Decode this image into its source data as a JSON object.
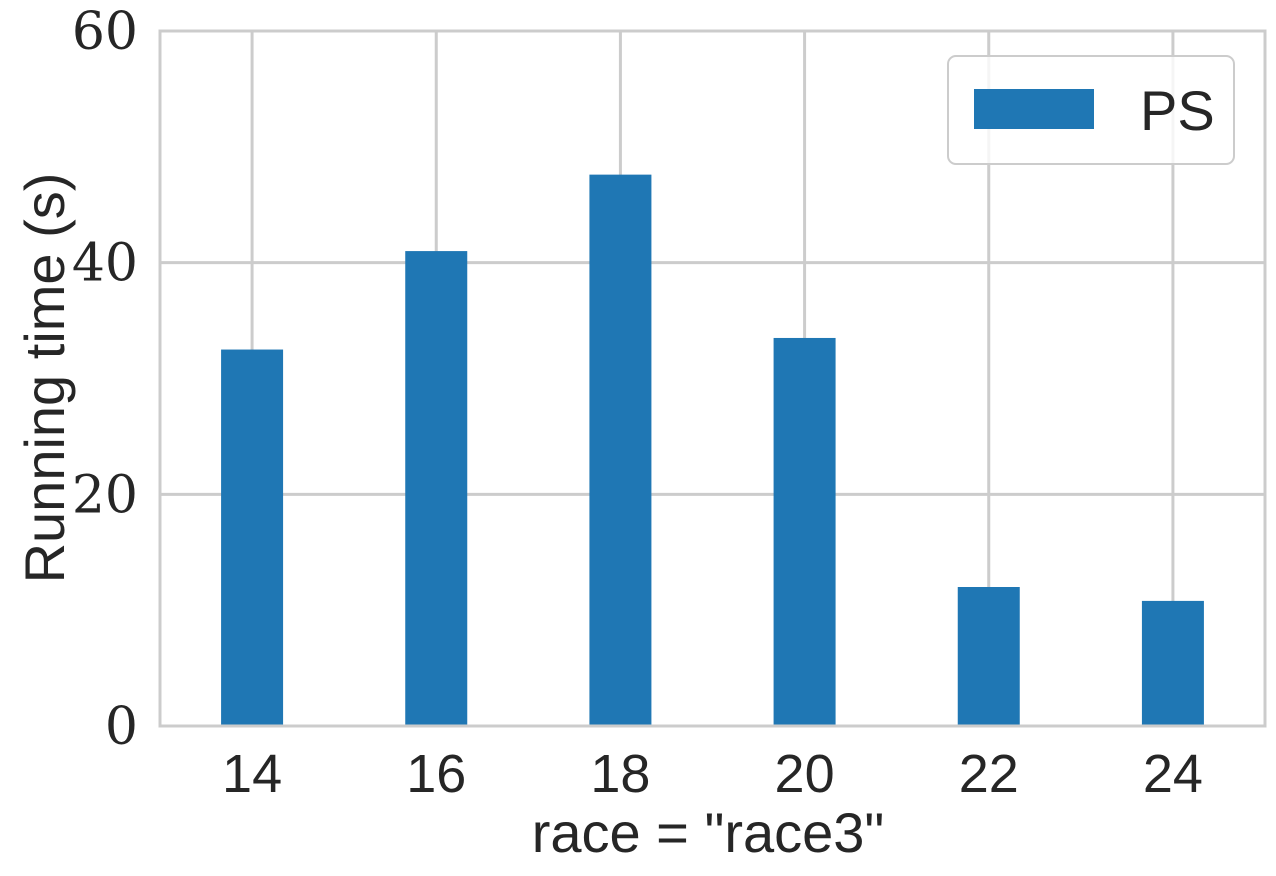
{
  "chart_data": {
    "type": "bar",
    "categories": [
      "14",
      "16",
      "18",
      "20",
      "22",
      "24"
    ],
    "series": [
      {
        "name": "PS",
        "values": [
          32.5,
          41.0,
          47.6,
          33.5,
          12.0,
          10.8
        ],
        "color": "#1f77b4"
      }
    ],
    "title": "",
    "xlabel": "race = \"race3\"",
    "ylabel": "Running time (s)",
    "ylim": [
      0,
      60
    ],
    "yticks": [
      "0",
      "20",
      "40",
      "60"
    ],
    "grid": true,
    "legend_position": "top-right"
  },
  "colors": {
    "grid": "#cccccc",
    "spine": "#cccccc",
    "text": "#262626"
  }
}
